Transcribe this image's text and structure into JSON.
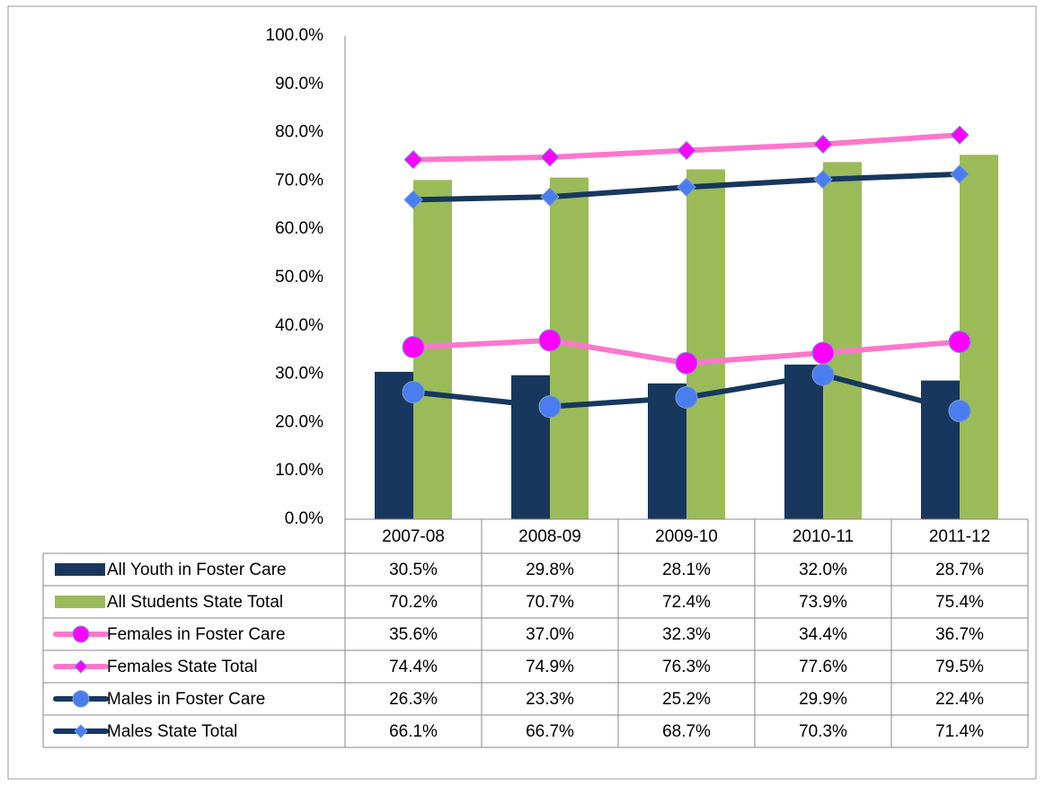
{
  "chart_data": {
    "type": "combo",
    "categories": [
      "2007-08",
      "2008-09",
      "2009-10",
      "2010-11",
      "2011-12"
    ],
    "ylim": [
      0,
      100
    ],
    "yticks": [
      {
        "value": 0,
        "label": "0.0%"
      },
      {
        "value": 10,
        "label": "10.0%"
      },
      {
        "value": 20,
        "label": "20.0%"
      },
      {
        "value": 30,
        "label": "30.0%"
      },
      {
        "value": 40,
        "label": "40.0%"
      },
      {
        "value": 50,
        "label": "50.0%"
      },
      {
        "value": 60,
        "label": "60.0%"
      },
      {
        "value": 70,
        "label": "70.0%"
      },
      {
        "value": 80,
        "label": "80.0%"
      },
      {
        "value": 90,
        "label": "90.0%"
      },
      {
        "value": 100,
        "label": "100.0%"
      }
    ],
    "grid": false,
    "series": [
      {
        "name": "All Youth in  Foster Care",
        "type": "bar",
        "color": "#17375e",
        "values": [
          30.5,
          29.8,
          28.1,
          32.0,
          28.7
        ],
        "value_labels": [
          "30.5%",
          "29.8%",
          "28.1%",
          "32.0%",
          "28.7%"
        ]
      },
      {
        "name": "All Students State Total",
        "type": "bar",
        "color": "#9bbb59",
        "values": [
          70.2,
          70.7,
          72.4,
          73.9,
          75.4
        ],
        "value_labels": [
          "70.2%",
          "70.7%",
          "72.4%",
          "73.9%",
          "75.4%"
        ]
      },
      {
        "name": "Females in Foster Care",
        "type": "line",
        "color": "#ff77cc",
        "marker": "circle",
        "marker_color": "#ff00ff",
        "values": [
          35.6,
          37.0,
          32.3,
          34.4,
          36.7
        ],
        "value_labels": [
          "35.6%",
          "37.0%",
          "32.3%",
          "34.4%",
          "36.7%"
        ]
      },
      {
        "name": "Females State Total",
        "type": "line",
        "color": "#ff77cc",
        "marker": "diamond",
        "marker_color": "#ff00ff",
        "values": [
          74.4,
          74.9,
          76.3,
          77.6,
          79.5
        ],
        "value_labels": [
          "74.4%",
          "74.9%",
          "76.3%",
          "77.6%",
          "79.5%"
        ]
      },
      {
        "name": "Males in Foster Care",
        "type": "line",
        "color": "#17375e",
        "marker": "circle",
        "marker_color": "#4a7ef0",
        "values": [
          26.3,
          23.3,
          25.2,
          29.9,
          22.4
        ],
        "value_labels": [
          "26.3%",
          "23.3%",
          "25.2%",
          "29.9%",
          "22.4%"
        ]
      },
      {
        "name": "Males State Total",
        "type": "line",
        "color": "#17375e",
        "marker": "diamond",
        "marker_color": "#4a7ef0",
        "values": [
          66.1,
          66.7,
          68.7,
          70.3,
          71.4
        ],
        "value_labels": [
          "66.1%",
          "66.7%",
          "68.7%",
          "70.3%",
          "71.4%"
        ]
      }
    ]
  }
}
